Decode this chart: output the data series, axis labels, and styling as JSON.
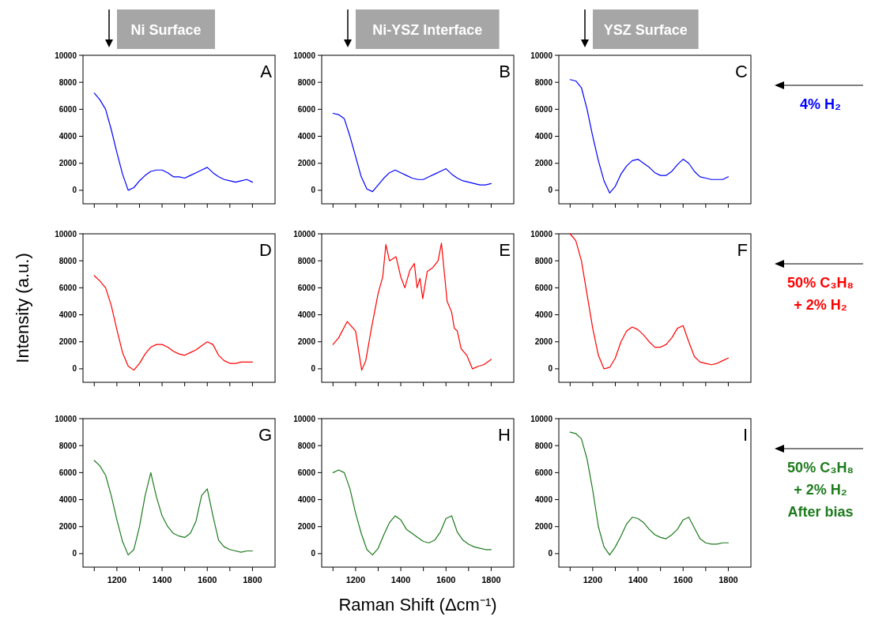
{
  "chart_data": [
    {
      "type": "line",
      "title": "Ni Surface",
      "annotations": [
        "A"
      ],
      "tick_labels": "y",
      "xlim": [
        1050,
        1900
      ],
      "ylim": [
        -1000,
        10000
      ],
      "yticks": [
        0,
        2000,
        4000,
        6000,
        8000,
        10000
      ],
      "xticks": [
        {
          "value": 1100,
          "label": null
        },
        1200,
        {
          "value": 1300,
          "label": null
        },
        1400,
        {
          "value": 1500,
          "label": null
        },
        1600,
        {
          "value": 1700,
          "label": null
        },
        1800
      ],
      "x": [
        1100,
        1125,
        1150,
        1175,
        1200,
        1225,
        1250,
        1275,
        1300,
        1325,
        1350,
        1375,
        1400,
        1425,
        1450,
        1475,
        1500,
        1525,
        1550,
        1575,
        1600,
        1625,
        1650,
        1675,
        1700,
        1725,
        1750,
        1775,
        1800
      ],
      "series": [
        {
          "color": "#0000ff",
          "values": [
            7200,
            6700,
            6000,
            4500,
            2800,
            1200,
            0,
            200,
            700,
            1100,
            1400,
            1500,
            1500,
            1300,
            1000,
            1000,
            900,
            1100,
            1300,
            1500,
            1700,
            1300,
            1000,
            800,
            700,
            600,
            700,
            800,
            600
          ]
        }
      ]
    },
    {
      "type": "line",
      "title": "Ni-YSZ Interface",
      "annotations": [
        "B"
      ],
      "tick_labels": "y",
      "xlim": [
        1050,
        1900
      ],
      "ylim": [
        -1000,
        10000
      ],
      "yticks": [
        0,
        2000,
        4000,
        6000,
        8000,
        10000
      ],
      "xticks": [
        {
          "value": 1100,
          "label": null
        },
        1200,
        {
          "value": 1300,
          "label": null
        },
        1400,
        {
          "value": 1500,
          "label": null
        },
        1600,
        {
          "value": 1700,
          "label": null
        },
        1800
      ],
      "x": [
        1100,
        1125,
        1150,
        1175,
        1200,
        1225,
        1250,
        1275,
        1300,
        1325,
        1350,
        1375,
        1400,
        1425,
        1450,
        1475,
        1500,
        1525,
        1550,
        1575,
        1600,
        1625,
        1650,
        1675,
        1700,
        1725,
        1750,
        1775,
        1800
      ],
      "series": [
        {
          "color": "#0000ff",
          "values": [
            5700,
            5600,
            5300,
            4000,
            2500,
            1000,
            100,
            -100,
            400,
            900,
            1300,
            1500,
            1300,
            1100,
            900,
            800,
            800,
            1000,
            1200,
            1400,
            1600,
            1200,
            900,
            700,
            600,
            500,
            400,
            400,
            500
          ]
        }
      ]
    },
    {
      "type": "line",
      "title": "YSZ Surface",
      "annotations": [
        "C",
        "4% H₂"
      ],
      "tick_labels": "y",
      "xlim": [
        1050,
        1900
      ],
      "ylim": [
        -1000,
        10000
      ],
      "yticks": [
        0,
        2000,
        4000,
        6000,
        8000,
        10000
      ],
      "xticks": [
        {
          "value": 1100,
          "label": null
        },
        1200,
        {
          "value": 1300,
          "label": null
        },
        1400,
        {
          "value": 1500,
          "label": null
        },
        1600,
        {
          "value": 1700,
          "label": null
        },
        1800
      ],
      "x": [
        1100,
        1125,
        1150,
        1175,
        1200,
        1225,
        1250,
        1275,
        1300,
        1325,
        1350,
        1375,
        1400,
        1425,
        1450,
        1475,
        1500,
        1525,
        1550,
        1575,
        1600,
        1625,
        1650,
        1675,
        1700,
        1725,
        1750,
        1775,
        1800
      ],
      "series": [
        {
          "color": "#0000ff",
          "values": [
            8200,
            8100,
            7600,
            6000,
            4000,
            2200,
            700,
            -200,
            300,
            1200,
            1800,
            2200,
            2300,
            2000,
            1700,
            1300,
            1100,
            1100,
            1400,
            1900,
            2300,
            2000,
            1400,
            1000,
            900,
            800,
            800,
            800,
            1000
          ]
        }
      ]
    },
    {
      "type": "line",
      "ylabel": "Intensity (a.u.)",
      "annotations": [
        "D"
      ],
      "tick_labels": "y",
      "xlim": [
        1050,
        1900
      ],
      "ylim": [
        -1000,
        10000
      ],
      "yticks": [
        0,
        2000,
        4000,
        6000,
        8000,
        10000
      ],
      "xticks": [
        {
          "value": 1100,
          "label": null
        },
        1200,
        {
          "value": 1300,
          "label": null
        },
        1400,
        {
          "value": 1500,
          "label": null
        },
        1600,
        {
          "value": 1700,
          "label": null
        },
        1800
      ],
      "x": [
        1100,
        1125,
        1150,
        1175,
        1200,
        1225,
        1250,
        1275,
        1300,
        1325,
        1350,
        1375,
        1400,
        1425,
        1450,
        1475,
        1500,
        1525,
        1550,
        1575,
        1600,
        1625,
        1650,
        1675,
        1700,
        1725,
        1750,
        1775,
        1800
      ],
      "series": [
        {
          "color": "#ff0000",
          "values": [
            6900,
            6500,
            6000,
            4700,
            2900,
            1200,
            200,
            -100,
            400,
            1100,
            1600,
            1800,
            1800,
            1600,
            1300,
            1100,
            1000,
            1200,
            1400,
            1700,
            2000,
            1800,
            1000,
            600,
            400,
            400,
            500,
            500,
            500
          ]
        }
      ]
    },
    {
      "type": "line",
      "annotations": [
        "E"
      ],
      "tick_labels": "y",
      "xlim": [
        1050,
        1900
      ],
      "ylim": [
        -1000,
        10000
      ],
      "yticks": [
        0,
        2000,
        4000,
        6000,
        8000,
        10000
      ],
      "xticks": [
        {
          "value": 1100,
          "label": null
        },
        1200,
        {
          "value": 1300,
          "label": null
        },
        1400,
        {
          "value": 1500,
          "label": null
        },
        1600,
        {
          "value": 1700,
          "label": null
        },
        1800
      ],
      "x": [
        1100,
        1125,
        1163,
        1200,
        1227,
        1245,
        1270,
        1300,
        1320,
        1334,
        1350,
        1379,
        1400,
        1418,
        1440,
        1460,
        1472,
        1485,
        1497,
        1517,
        1542,
        1565,
        1580,
        1605,
        1625,
        1637,
        1650,
        1667,
        1692,
        1717,
        1745,
        1767,
        1800
      ],
      "series": [
        {
          "color": "#ff0000",
          "values": [
            1800,
            2300,
            3500,
            2800,
            -100,
            600,
            3000,
            5600,
            6800,
            9200,
            8000,
            8300,
            6800,
            6000,
            7300,
            7800,
            6000,
            6700,
            5200,
            7200,
            7500,
            8000,
            9300,
            5000,
            4200,
            3000,
            2800,
            1500,
            1000,
            0,
            200,
            300,
            700
          ]
        }
      ]
    },
    {
      "type": "line",
      "annotations": [
        "F",
        "50% C₃H₈\n+ 2% H₂"
      ],
      "tick_labels": "y",
      "xlim": [
        1050,
        1900
      ],
      "ylim": [
        -1000,
        10000
      ],
      "yticks": [
        0,
        2000,
        4000,
        6000,
        8000,
        10000
      ],
      "xticks": [
        {
          "value": 1100,
          "label": null
        },
        1200,
        {
          "value": 1300,
          "label": null
        },
        1400,
        {
          "value": 1500,
          "label": null
        },
        1600,
        {
          "value": 1700,
          "label": null
        },
        1800
      ],
      "x": [
        1100,
        1125,
        1150,
        1175,
        1200,
        1225,
        1250,
        1275,
        1300,
        1325,
        1350,
        1375,
        1400,
        1425,
        1450,
        1475,
        1500,
        1525,
        1550,
        1575,
        1600,
        1625,
        1650,
        1675,
        1700,
        1725,
        1750,
        1775,
        1800
      ],
      "series": [
        {
          "color": "#ff0000",
          "values": [
            10000,
            9500,
            8000,
            5500,
            3000,
            1000,
            0,
            100,
            800,
            2000,
            2800,
            3100,
            2900,
            2500,
            2000,
            1600,
            1600,
            1800,
            2300,
            3000,
            3200,
            2000,
            900,
            500,
            400,
            300,
            400,
            600,
            800
          ]
        }
      ]
    },
    {
      "type": "line",
      "annotations": [
        "G"
      ],
      "xlim": [
        1050,
        1900
      ],
      "ylim": [
        -1000,
        10000
      ],
      "yticks": [
        0,
        2000,
        4000,
        6000,
        8000,
        10000
      ],
      "xticks": [
        {
          "value": 1100,
          "label": null
        },
        1200,
        {
          "value": 1300,
          "label": null
        },
        1400,
        {
          "value": 1500,
          "label": null
        },
        1600,
        {
          "value": 1700,
          "label": null
        },
        1800
      ],
      "x": [
        1100,
        1125,
        1150,
        1175,
        1200,
        1225,
        1250,
        1275,
        1300,
        1325,
        1350,
        1375,
        1400,
        1425,
        1450,
        1475,
        1500,
        1525,
        1550,
        1575,
        1600,
        1625,
        1650,
        1675,
        1700,
        1725,
        1750,
        1775,
        1800
      ],
      "series": [
        {
          "color": "#1e7b1e",
          "values": [
            6900,
            6500,
            5800,
            4300,
            2500,
            900,
            -100,
            300,
            2000,
            4300,
            6000,
            4200,
            2800,
            2000,
            1500,
            1300,
            1200,
            1500,
            2400,
            4300,
            4800,
            2800,
            1000,
            500,
            300,
            200,
            100,
            200,
            200
          ]
        }
      ]
    },
    {
      "type": "line",
      "xlabel": "Raman Shift (Δcm⁻¹)",
      "annotations": [
        "H"
      ],
      "xlim": [
        1050,
        1900
      ],
      "ylim": [
        -1000,
        10000
      ],
      "yticks": [
        0,
        2000,
        4000,
        6000,
        8000,
        10000
      ],
      "xticks": [
        {
          "value": 1100,
          "label": null
        },
        1200,
        {
          "value": 1300,
          "label": null
        },
        1400,
        {
          "value": 1500,
          "label": null
        },
        1600,
        {
          "value": 1700,
          "label": null
        },
        1800
      ],
      "x": [
        1100,
        1125,
        1150,
        1175,
        1200,
        1225,
        1250,
        1275,
        1300,
        1325,
        1350,
        1375,
        1400,
        1425,
        1450,
        1475,
        1500,
        1525,
        1550,
        1575,
        1600,
        1625,
        1650,
        1675,
        1700,
        1725,
        1750,
        1775,
        1800
      ],
      "series": [
        {
          "color": "#1e7b1e",
          "values": [
            6000,
            6200,
            6000,
            4800,
            3000,
            1500,
            300,
            -100,
            400,
            1400,
            2300,
            2800,
            2500,
            1800,
            1500,
            1200,
            900,
            800,
            1000,
            1600,
            2600,
            2800,
            1600,
            1000,
            700,
            500,
            400,
            300,
            300
          ]
        }
      ]
    },
    {
      "type": "line",
      "annotations": [
        "I",
        "50% C₃H₈\n+ 2% H₂\nAfter bias"
      ],
      "xlim": [
        1050,
        1900
      ],
      "ylim": [
        -1000,
        10000
      ],
      "yticks": [
        0,
        2000,
        4000,
        6000,
        8000,
        10000
      ],
      "xticks": [
        {
          "value": 1100,
          "label": null
        },
        1200,
        {
          "value": 1300,
          "label": null
        },
        1400,
        {
          "value": 1500,
          "label": null
        },
        1600,
        {
          "value": 1700,
          "label": null
        },
        1800
      ],
      "x": [
        1100,
        1125,
        1150,
        1175,
        1200,
        1225,
        1250,
        1275,
        1300,
        1325,
        1350,
        1375,
        1400,
        1425,
        1450,
        1475,
        1500,
        1525,
        1550,
        1575,
        1600,
        1625,
        1650,
        1675,
        1700,
        1725,
        1750,
        1775,
        1800
      ],
      "series": [
        {
          "color": "#1e7b1e",
          "values": [
            9000,
            8900,
            8500,
            7000,
            4700,
            2000,
            500,
            -100,
            500,
            1300,
            2200,
            2700,
            2600,
            2300,
            1800,
            1400,
            1200,
            1100,
            1400,
            1800,
            2500,
            2700,
            1900,
            1100,
            800,
            700,
            700,
            800,
            800
          ]
        }
      ]
    }
  ]
}
